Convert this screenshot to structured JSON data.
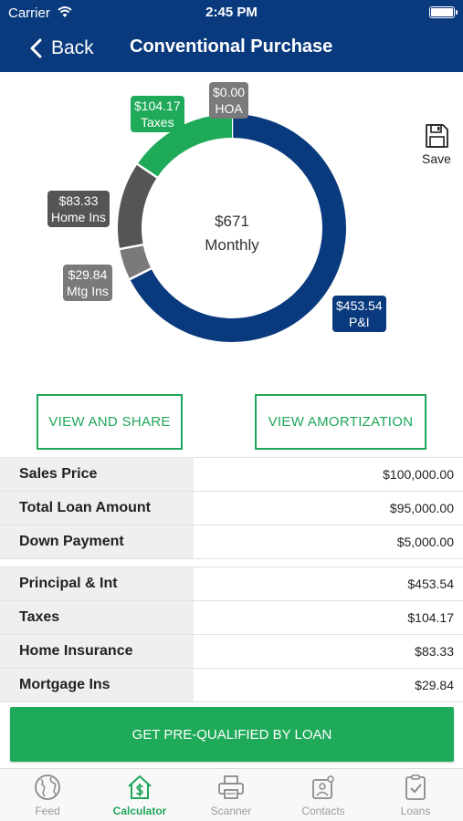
{
  "status_bar": {
    "carrier": "Carrier",
    "time": "2:45 PM",
    "battery_level": 1.0
  },
  "nav": {
    "back_label": "Back",
    "title": "Conventional Purchase"
  },
  "chart_data": {
    "type": "pie",
    "center_amount": "$671",
    "center_label": "Monthly",
    "slices": [
      {
        "name": "P&I",
        "label": "$453.54",
        "value": 453.54,
        "color": "#0a3a7e"
      },
      {
        "name": "Mtg Ins",
        "label": "$29.84",
        "value": 29.84,
        "color": "#7a7a7a"
      },
      {
        "name": "Home Ins",
        "label": "$83.33",
        "value": 83.33,
        "color": "#555555"
      },
      {
        "name": "Taxes",
        "label": "$104.17",
        "value": 104.17,
        "color": "#1faa59"
      },
      {
        "name": "HOA",
        "label": "$0.00",
        "value": 0.0,
        "color": "#7a7a7a"
      }
    ]
  },
  "save_label": "Save",
  "buttons": {
    "view_share": "VIEW AND SHARE",
    "view_amortization": "VIEW AMORTIZATION"
  },
  "loan_rows": [
    {
      "label": "Sales Price",
      "value": "$100,000.00"
    },
    {
      "label": "Total Loan Amount",
      "value": "$95,000.00"
    },
    {
      "label": "Down Payment",
      "value": "$5,000.00"
    }
  ],
  "payment_rows": [
    {
      "label": "Principal & Int",
      "value": "$453.54"
    },
    {
      "label": "Taxes",
      "value": "$104.17"
    },
    {
      "label": "Home Insurance",
      "value": "$83.33"
    },
    {
      "label": "Mortgage Ins",
      "value": "$29.84"
    }
  ],
  "cta_label": "GET PRE-QUALIFIED BY LOAN",
  "tabs": [
    {
      "label": "Feed",
      "icon": "globe-icon",
      "active": false
    },
    {
      "label": "Calculator",
      "icon": "house-dollar-icon",
      "active": true
    },
    {
      "label": "Scanner",
      "icon": "printer-icon",
      "active": false
    },
    {
      "label": "Contacts",
      "icon": "contacts-icon",
      "active": false
    },
    {
      "label": "Loans",
      "icon": "clipboard-check-icon",
      "active": false
    }
  ],
  "colors": {
    "brand": "#0a3a7e",
    "accent": "#1faa59"
  }
}
